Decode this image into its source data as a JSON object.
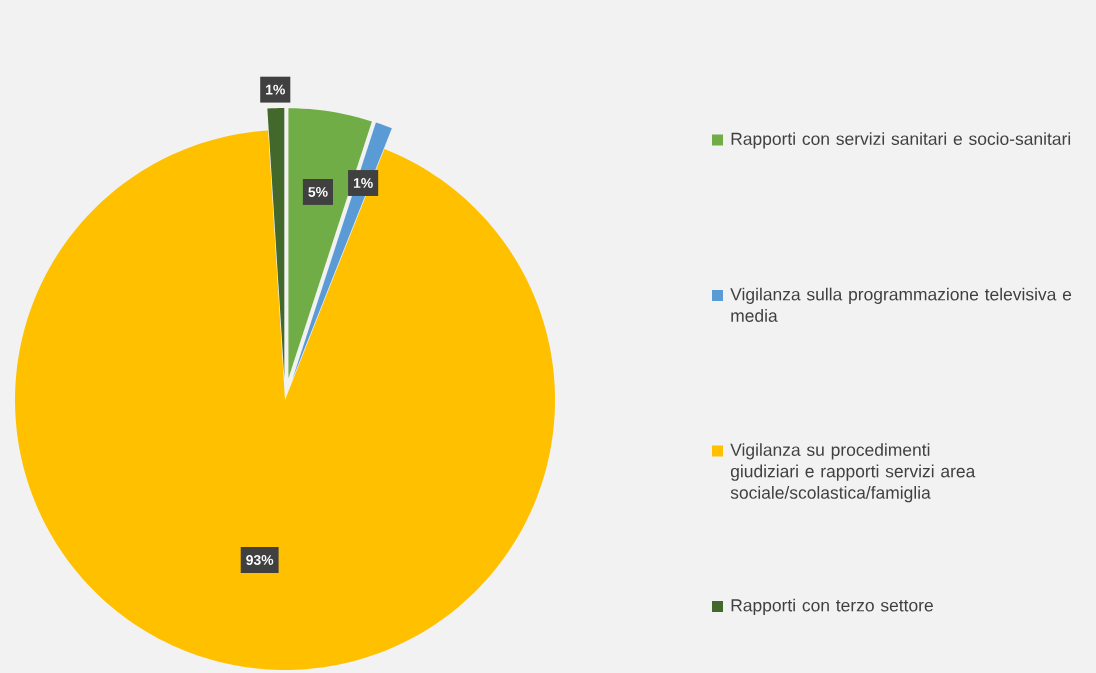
{
  "chart_data": {
    "type": "pie",
    "categories": [
      "Rapporti con servizi sanitari e socio-sanitari",
      "Vigilanza sulla programmazione televisiva e media",
      "Vigilanza su procedimenti giudiziari e rapporti servizi area sociale/scolastica/famiglia",
      "Rapporti con terzo settore"
    ],
    "values": [
      5,
      1,
      93,
      1
    ],
    "colors": [
      "#70ad47",
      "#5b9bd5",
      "#ffc000",
      "#43682b"
    ],
    "value_labels": [
      "5%",
      "1%",
      "93%",
      "1%"
    ],
    "legend": "right"
  }
}
